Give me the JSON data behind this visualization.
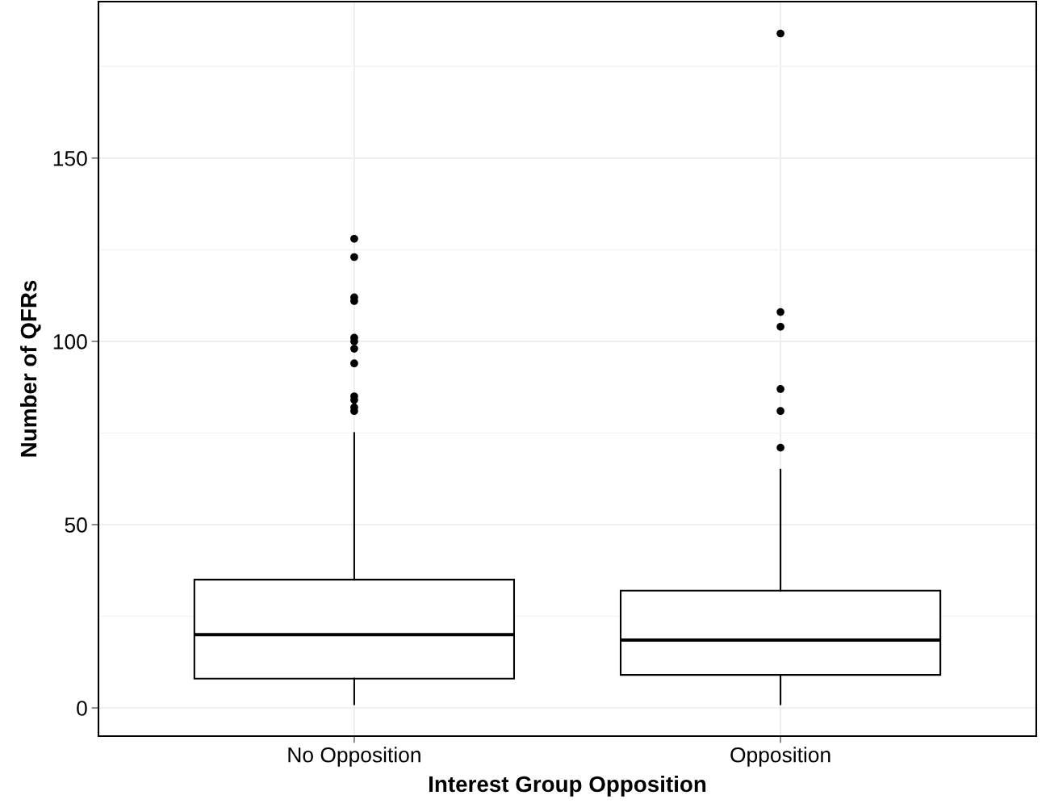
{
  "chart_data": {
    "type": "box",
    "xlabel": "Interest Group Opposition",
    "ylabel": "Number of QFRs",
    "categories": [
      "No Opposition",
      "Opposition"
    ],
    "boxes": [
      {
        "low": 1,
        "q1": 8,
        "median": 20,
        "q3": 35,
        "high": 75,
        "outliers": [
          128,
          123,
          112,
          111,
          101,
          100,
          98,
          94,
          85,
          84,
          82,
          81
        ]
      },
      {
        "low": 1,
        "q1": 9,
        "median": 18.5,
        "q3": 32,
        "high": 65,
        "outliers": [
          184,
          108,
          104,
          87,
          81,
          71
        ]
      }
    ],
    "color": "#000000",
    "ylim": [
      -7.7,
      192.7
    ],
    "yticks": [
      0,
      50,
      100,
      150
    ],
    "grid": true
  }
}
